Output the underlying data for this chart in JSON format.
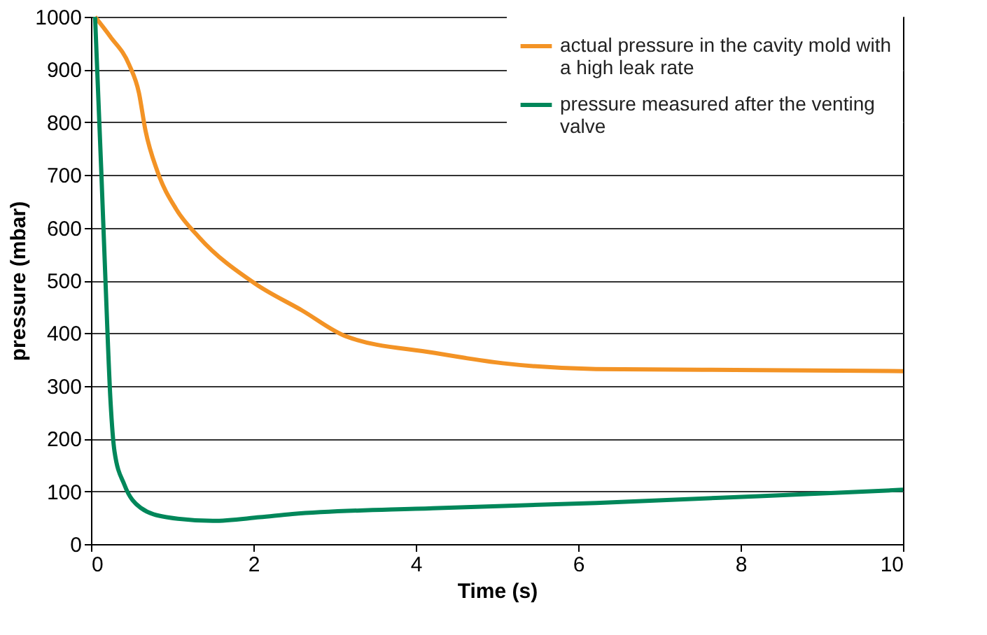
{
  "chart_data": {
    "type": "line",
    "xlabel": "Time (s)",
    "ylabel": "pressure (mbar)",
    "xlim": [
      0,
      10
    ],
    "xticks": [
      0,
      2,
      4,
      6,
      8,
      10
    ],
    "ylim": [
      0,
      1000
    ],
    "yticks": [
      0,
      100,
      200,
      300,
      400,
      500,
      600,
      700,
      800,
      900,
      1000
    ],
    "grid": "y",
    "legend": "top right",
    "line_style": "solid",
    "marker": "none",
    "series": [
      {
        "name": "actual pressure in the cavity mold with a high leak rate",
        "color": "#f39325",
        "x": [
          0.05,
          0.24,
          0.47,
          0.59,
          0.67,
          0.82,
          1.05,
          1.33,
          2.02,
          2.6,
          3.14,
          4.21,
          5.07,
          6.22,
          8.23,
          10
        ],
        "values": [
          1000,
          962,
          909,
          856,
          785,
          706,
          635,
          582,
          494,
          443,
          394,
          363,
          343,
          332,
          330,
          328
        ]
      },
      {
        "name": "pressure measured after the venting valve",
        "color": "#00875a",
        "x": [
          0.05,
          0.125,
          0.18,
          0.24,
          0.29,
          0.41,
          0.61,
          0.93,
          1.5,
          2.08,
          2.48,
          4.21,
          6.22,
          8.23,
          10
        ],
        "values": [
          1000,
          714,
          493,
          272,
          175,
          113,
          69,
          51,
          44,
          51,
          57,
          68,
          78,
          91,
          103
        ]
      }
    ]
  }
}
